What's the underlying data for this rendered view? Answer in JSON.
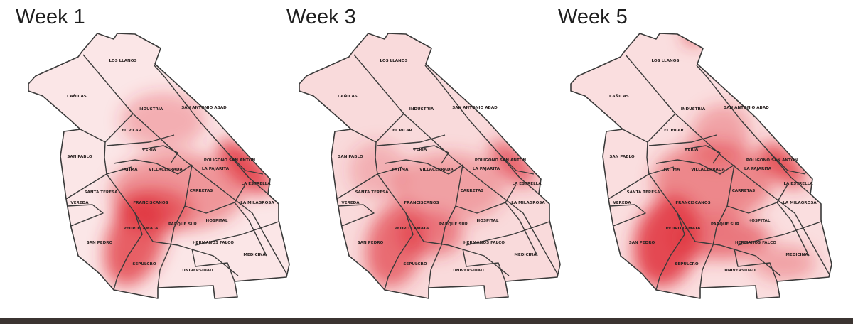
{
  "panels": [
    {
      "title": "Week 1"
    },
    {
      "title": "Week 3"
    },
    {
      "title": "Week 5"
    }
  ],
  "neighborhoods": [
    "LOS LLANOS",
    "CAÑICAS",
    "INDUSTRIA",
    "SAN ANTONIO ABAD",
    "EL PILAR",
    "FERIA",
    "SAN PABLO",
    "POLIGONO SAN ANTON",
    "FATIMA",
    "VILLACERRADA",
    "LA PAJARITA",
    "LA ESTRELLA",
    "CARRETAS",
    "SANTA TERESA",
    "VEREDA",
    "FRANCISCANOS",
    "LA MILAGROSA",
    "HOSPITAL",
    "PARQUE SUR",
    "PEDRO LAMATA",
    "SAN PEDRO",
    "HERMANOS FALCO",
    "MEDICINA",
    "SEPULCRO",
    "UNIVERSIDAD"
  ],
  "colors": {
    "heat": "#e0303a",
    "boundary": "#3a3a3a",
    "bottom_band": "#3b3431"
  }
}
